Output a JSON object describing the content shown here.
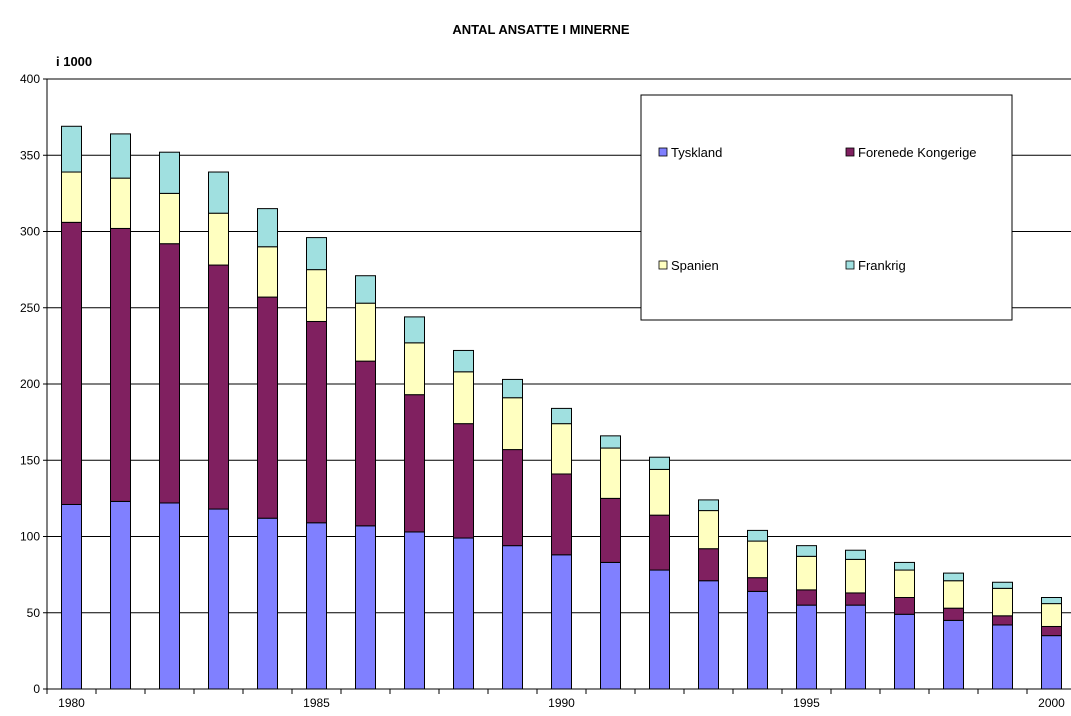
{
  "chart_data": {
    "type": "bar",
    "stacked": true,
    "title": "ANTAL ANSATTE I MINERNE",
    "ylabel": "i 1000",
    "xlabel": "",
    "ylim": [
      0,
      400
    ],
    "yticks": [
      0,
      50,
      100,
      150,
      200,
      250,
      300,
      350,
      400
    ],
    "grid": true,
    "legend_position": "top-right",
    "categories": [
      "1980",
      "1981",
      "1982",
      "1983",
      "1984",
      "1985",
      "1986",
      "1987",
      "1988",
      "1989",
      "1990",
      "1991",
      "1992",
      "1993",
      "1994",
      "1995",
      "1996",
      "1997",
      "1998",
      "1999",
      "2000"
    ],
    "x_tick_labels": [
      "1980",
      "",
      "",
      "",
      "",
      "1985",
      "",
      "",
      "",
      "",
      "1990",
      "",
      "",
      "",
      "",
      "1995",
      "",
      "",
      "",
      "",
      "2000"
    ],
    "series": [
      {
        "name": "Tyskland",
        "color": "#8080ff",
        "values": [
          121,
          123,
          122,
          118,
          112,
          109,
          107,
          103,
          99,
          94,
          88,
          83,
          78,
          71,
          64,
          55,
          55,
          49,
          45,
          42,
          35
        ]
      },
      {
        "name": "Forenede Kongerige",
        "color": "#802060",
        "values": [
          185,
          179,
          170,
          160,
          145,
          132,
          108,
          90,
          75,
          63,
          53,
          42,
          36,
          21,
          9,
          10,
          8,
          11,
          8,
          6,
          6
        ]
      },
      {
        "name": "Spanien",
        "color": "#ffffc0",
        "values": [
          33,
          33,
          33,
          34,
          33,
          34,
          38,
          34,
          34,
          34,
          33,
          33,
          30,
          25,
          24,
          22,
          22,
          18,
          18,
          18,
          15
        ]
      },
      {
        "name": "Frankrig",
        "color": "#a0e0e0",
        "values": [
          30,
          29,
          27,
          27,
          25,
          21,
          18,
          17,
          14,
          12,
          10,
          8,
          8,
          7,
          7,
          7,
          6,
          5,
          5,
          4,
          4
        ]
      }
    ]
  }
}
